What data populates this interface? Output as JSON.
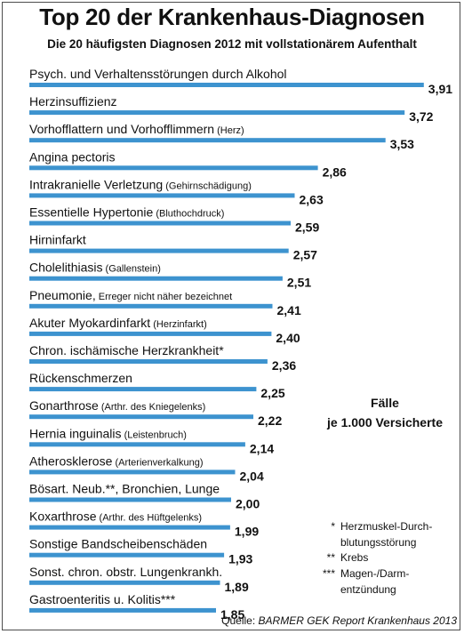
{
  "chart_data": {
    "type": "bar",
    "orientation": "horizontal",
    "title": "Top 20 der Krankenhaus-Diagnosen",
    "subtitle": "Die 20 häufigsten Diagnosen 2012 mit vollstationärem Aufenthalt",
    "unit_label_line1": "Fälle",
    "unit_label_line2": "je 1.000 Versicherte",
    "items": [
      {
        "label": "Psych. und Verhaltensstörungen durch Alkohol",
        "note": "",
        "value": 3.91,
        "value_label": "3,91"
      },
      {
        "label": "Herzinsuffizienz",
        "note": "",
        "value": 3.72,
        "value_label": "3,72"
      },
      {
        "label": "Vorhofflattern und Vorhofflimmern",
        "note": "(Herz)",
        "value": 3.53,
        "value_label": "3,53"
      },
      {
        "label": "Angina pectoris",
        "note": "",
        "value": 2.86,
        "value_label": "2,86"
      },
      {
        "label": "Intrakranielle Verletzung",
        "note": "(Gehirnschädigung)",
        "value": 2.63,
        "value_label": "2,63"
      },
      {
        "label": "Essentielle Hypertonie",
        "note": "(Bluthochdruck)",
        "value": 2.59,
        "value_label": "2,59"
      },
      {
        "label": "Hirninfarkt",
        "note": "",
        "value": 2.57,
        "value_label": "2,57"
      },
      {
        "label": "Cholelithiasis",
        "note": "(Gallenstein)",
        "value": 2.51,
        "value_label": "2,51"
      },
      {
        "label": "Pneumonie,",
        "note": "Erreger nicht näher bezeichnet",
        "value": 2.41,
        "value_label": "2,41"
      },
      {
        "label": "Akuter Myokardinfarkt",
        "note": "(Herzinfarkt)",
        "value": 2.4,
        "value_label": "2,40"
      },
      {
        "label": "Chron. ischämische Herzkrankheit*",
        "note": "",
        "value": 2.36,
        "value_label": "2,36"
      },
      {
        "label": "Rückenschmerzen",
        "note": "",
        "value": 2.25,
        "value_label": "2,25"
      },
      {
        "label": "Gonarthrose",
        "note": "(Arthr. des Kniegelenks)",
        "value": 2.22,
        "value_label": "2,22"
      },
      {
        "label": "Hernia inguinalis",
        "note": "(Leistenbruch)",
        "value": 2.14,
        "value_label": "2,14"
      },
      {
        "label": "Atherosklerose",
        "note": "(Arterienverkalkung)",
        "value": 2.04,
        "value_label": "2,04"
      },
      {
        "label": "Bösart. Neub.**, Bronchien, Lunge",
        "note": "",
        "value": 2.0,
        "value_label": "2,00"
      },
      {
        "label": "Koxarthrose",
        "note": "(Arthr. des Hüftgelenks)",
        "value": 1.99,
        "value_label": "1,99"
      },
      {
        "label": "Sonstige Bandscheibenschäden",
        "note": "",
        "value": 1.93,
        "value_label": "1,93"
      },
      {
        "label": "Sonst. chron. obstr. Lungenkrankh.",
        "note": "",
        "value": 1.89,
        "value_label": "1,89"
      },
      {
        "label": "Gastroenteritis u. Kolitis***",
        "note": "",
        "value": 1.85,
        "value_label": "1,85"
      }
    ],
    "footnotes": [
      {
        "mark": "*",
        "lines": [
          "Herzmuskel-Durch-",
          "blutungsstörung"
        ]
      },
      {
        "mark": "**",
        "lines": [
          "Krebs"
        ]
      },
      {
        "mark": "***",
        "lines": [
          "Magen-/Darm-",
          "entzündung"
        ]
      }
    ],
    "source_lead": "Quelle:",
    "source": "BARMER GEK Report Krankenhaus 2013",
    "colors": {
      "bar": "#3d93cf",
      "frame": "#4d4d4d"
    }
  }
}
